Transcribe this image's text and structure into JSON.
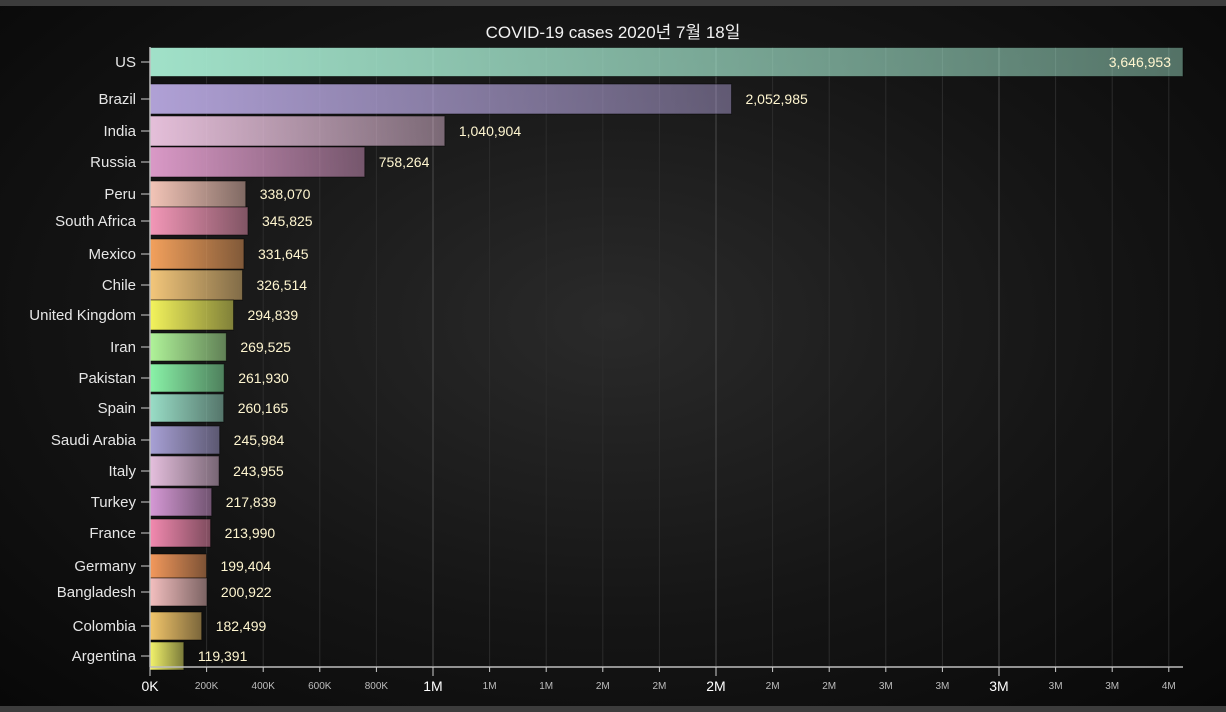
{
  "chart_data": {
    "type": "bar",
    "orientation": "horizontal",
    "title": "COVID-19 cases 2020년 7월 18일",
    "xlim": [
      0,
      3646953
    ],
    "grid": true,
    "legend": "none",
    "categories": [
      "US",
      "Brazil",
      "India",
      "Russia",
      "Peru",
      "South Africa",
      "Mexico",
      "Chile",
      "United Kingdom",
      "Iran",
      "Pakistan",
      "Spain",
      "Saudi Arabia",
      "Italy",
      "Turkey",
      "France",
      "Germany",
      "Bangladesh",
      "Colombia",
      "Argentina"
    ],
    "values": [
      3646953,
      2052985,
      1040904,
      758264,
      338070,
      345825,
      331645,
      326514,
      294839,
      269525,
      261930,
      260165,
      245984,
      243955,
      217839,
      213990,
      199404,
      200922,
      182499,
      119391
    ],
    "value_labels": [
      "3,646,953",
      "2,052,985",
      "1,040,904",
      "758,264",
      "338,070",
      "345,825",
      "331,645",
      "326,514",
      "294,839",
      "269,525",
      "261,930",
      "260,165",
      "245,984",
      "243,955",
      "217,839",
      "213,990",
      "199,404",
      "200,922",
      "182,499",
      "119,391"
    ],
    "bar_colors": [
      "#a8ecd2",
      "#b8a8e0",
      "#f0c8e4",
      "#e4a0d0",
      "#ffcec0",
      "#ff9ec0",
      "#ffa860",
      "#ffd080",
      "#ffff60",
      "#b8ffa0",
      "#90ffb0",
      "#a0e8d0",
      "#b0a8e0",
      "#f0c8e8",
      "#e0a0e0",
      "#ff90b8",
      "#ffa060",
      "#ffc8c8",
      "#ffd070",
      "#ffff70"
    ],
    "x_ticks": [
      {
        "label": "0K",
        "major": true
      },
      {
        "label": "200K",
        "major": false
      },
      {
        "label": "400K",
        "major": false
      },
      {
        "label": "600K",
        "major": false
      },
      {
        "label": "800K",
        "major": false
      },
      {
        "label": "1M",
        "major": true
      },
      {
        "label": "1M",
        "major": false
      },
      {
        "label": "1M",
        "major": false
      },
      {
        "label": "2M",
        "major": false
      },
      {
        "label": "2M",
        "major": false
      },
      {
        "label": "2M",
        "major": true
      },
      {
        "label": "2M",
        "major": false
      },
      {
        "label": "2M",
        "major": false
      },
      {
        "label": "3M",
        "major": false
      },
      {
        "label": "3M",
        "major": false
      },
      {
        "label": "3M",
        "major": true
      },
      {
        "label": "3M",
        "major": false
      },
      {
        "label": "3M",
        "major": false
      },
      {
        "label": "4M",
        "major": false
      }
    ]
  }
}
